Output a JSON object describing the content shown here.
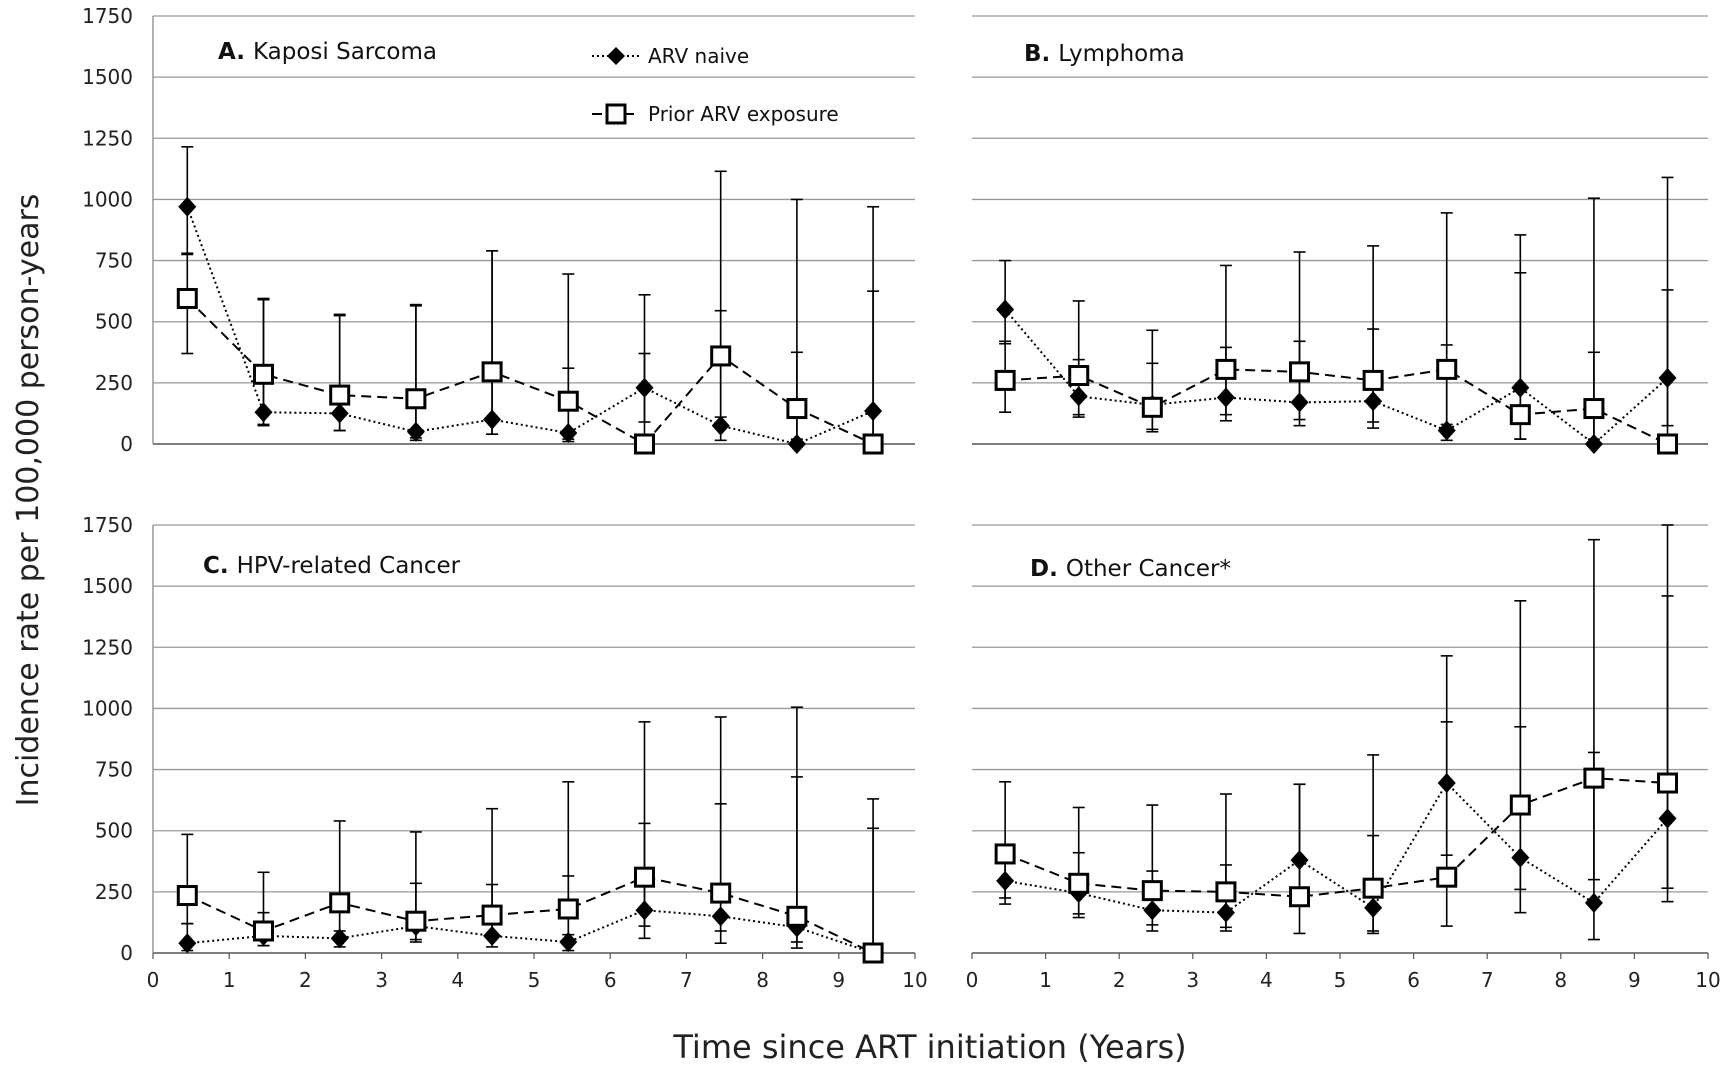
{
  "chart_data": {
    "type": "line",
    "y_axis_label": "Incidence rate per 100,000 person-years",
    "x_axis_label": "Time since ART initiation (Years)",
    "x_ticks": [
      "0",
      "1",
      "2",
      "3",
      "4",
      "5",
      "6",
      "7",
      "8",
      "9",
      "10"
    ],
    "y_ticks": [
      "0",
      "250",
      "500",
      "750",
      "1000",
      "1250",
      "1500",
      "1750"
    ],
    "xlim": [
      0,
      10
    ],
    "ylim": [
      0,
      1750
    ],
    "grid": "horizontal",
    "legend": {
      "placement": "top (panel A)",
      "entries": [
        {
          "label": "ARV naive",
          "marker": "filled-diamond",
          "line": "dotted",
          "color": "#000000"
        },
        {
          "label": "Prior ARV exposure",
          "marker": "open-square",
          "line": "dashed",
          "color": "#000000"
        }
      ]
    },
    "x": [
      0.45,
      1.45,
      2.45,
      3.45,
      4.45,
      5.45,
      6.45,
      7.45,
      8.45,
      9.45
    ],
    "panels": [
      {
        "letter": "A.",
        "title": "Kaposi Sarcoma",
        "series": [
          {
            "name": "ARV naive",
            "values": [
              970,
              130,
              125,
              50,
              100,
              45,
              230,
              75,
              0,
              135
            ],
            "upper": [
              1215,
              595,
              530,
              570,
              790,
              695,
              610,
              545,
              375,
              625
            ],
            "lower": [
              775,
              75,
              55,
              15,
              40,
              10,
              90,
              15,
              0,
              30
            ]
          },
          {
            "name": "Prior ARV exposure",
            "values": [
              595,
              285,
              200,
              185,
              295,
              175,
              0,
              360,
              145,
              0
            ],
            "upper": [
              780,
              590,
              525,
              565,
              790,
              310,
              370,
              1115,
              1000,
              970
            ],
            "lower": [
              370,
              80,
              55,
              25,
              40,
              20,
              0,
              110,
              20,
              0
            ]
          }
        ]
      },
      {
        "letter": "B.",
        "title": "Lymphoma",
        "series": [
          {
            "name": "ARV naive",
            "values": [
              550,
              195,
              160,
              190,
              170,
              175,
              55,
              230,
              0,
              270
            ],
            "upper": [
              750,
              345,
              330,
              395,
              420,
              470,
              405,
              700,
              375,
              630
            ],
            "lower": [
              410,
              110,
              50,
              95,
              75,
              65,
              15,
              20,
              0,
              75
            ]
          },
          {
            "name": "Prior ARV exposure",
            "values": [
              260,
              280,
              150,
              305,
              295,
              260,
              305,
              120,
              145,
              0
            ],
            "upper": [
              420,
              585,
              465,
              730,
              785,
              810,
              945,
              855,
              1005,
              1090
            ],
            "lower": [
              130,
              120,
              60,
              120,
              100,
              90,
              80,
              20,
              20,
              0
            ]
          }
        ]
      },
      {
        "letter": "C.",
        "title": "HPV-related Cancer",
        "series": [
          {
            "name": "ARV naive",
            "values": [
              40,
              70,
              60,
              110,
              70,
              45,
              175,
              150,
              105,
              0
            ],
            "upper": [
              120,
              165,
              175,
              285,
              280,
              315,
              530,
              610,
              720,
              510
            ],
            "lower": [
              10,
              30,
              25,
              45,
              25,
              10,
              60,
              40,
              20,
              0
            ]
          },
          {
            "name": "Prior ARV exposure",
            "values": [
              235,
              90,
              205,
              130,
              155,
              180,
              310,
              245,
              150,
              0
            ],
            "upper": [
              485,
              330,
              540,
              495,
              590,
              700,
              945,
              965,
              1005,
              630
            ],
            "lower": [
              120,
              30,
              90,
              55,
              70,
              75,
              110,
              90,
              45,
              0
            ]
          }
        ]
      },
      {
        "letter": "D.",
        "title": "Other Cancer*",
        "series": [
          {
            "name": "ARV naive",
            "values": [
              295,
              245,
              175,
              165,
              380,
              185,
              695,
              390,
              205,
              550
            ],
            "upper": [
              430,
              410,
              335,
              360,
              690,
              480,
              945,
              925,
              820,
              1460
            ],
            "lower": [
              200,
              145,
              90,
              90,
              215,
              80,
              400,
              165,
              55,
              210
            ]
          },
          {
            "name": "Prior ARV exposure",
            "values": [
              405,
              285,
              255,
              250,
              230,
              265,
              310,
              605,
              715,
              695
            ],
            "upper": [
              700,
              595,
              605,
              650,
              690,
              810,
              1215,
              1440,
              1690,
              1750
            ],
            "lower": [
              225,
              160,
              115,
              105,
              80,
              90,
              110,
              260,
              300,
              265
            ]
          }
        ]
      }
    ]
  }
}
